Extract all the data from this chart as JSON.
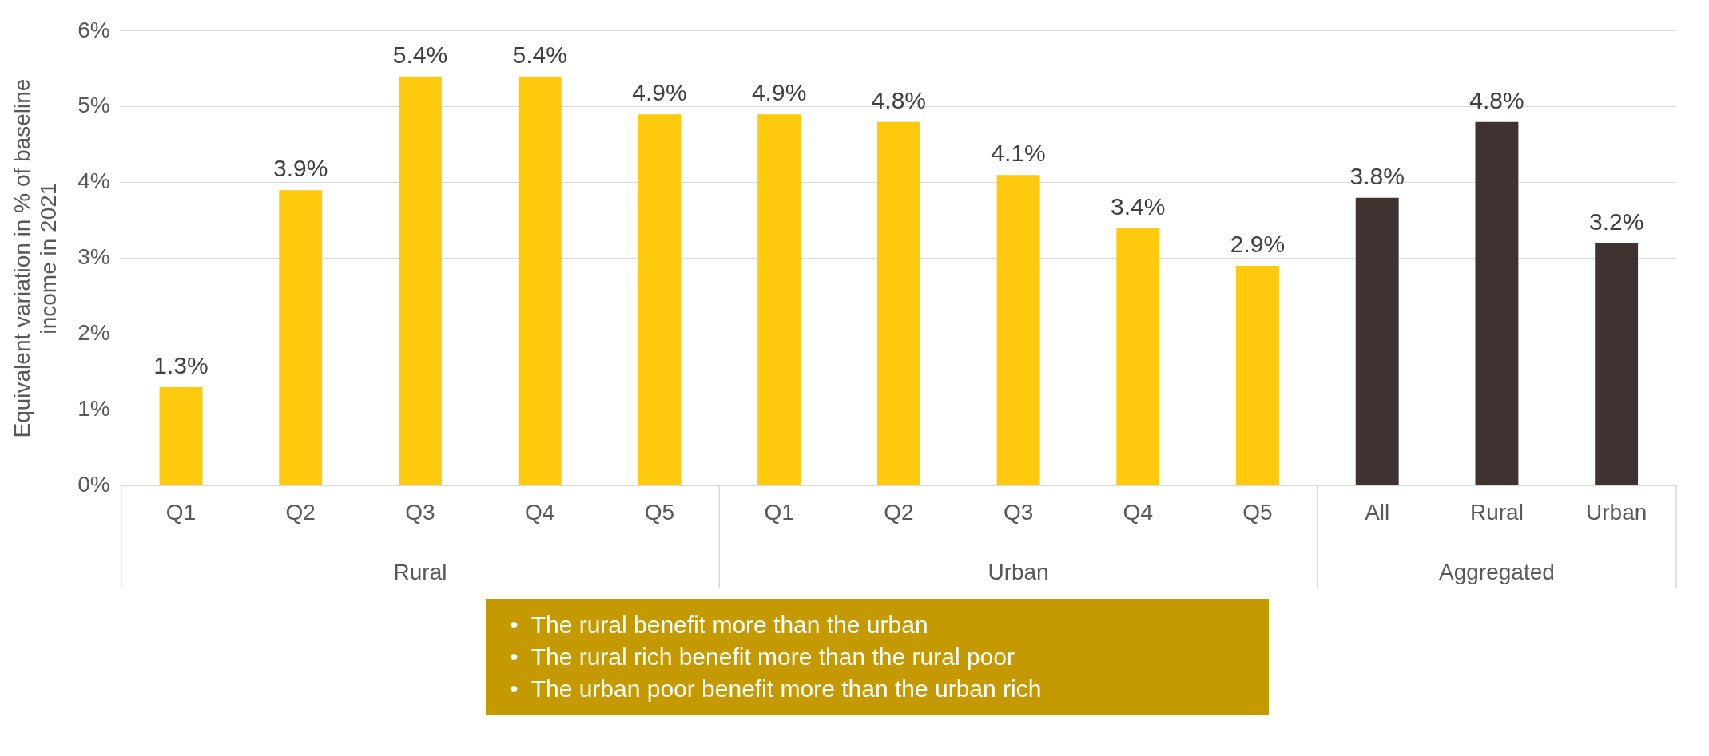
{
  "chart_data": {
    "type": "bar",
    "ylabel": "Equivalent variation in % of baseline income in 2021",
    "categories": [
      "Q1",
      "Q2",
      "Q3",
      "Q4",
      "Q5",
      "Q1",
      "Q2",
      "Q3",
      "Q4",
      "Q5",
      "All",
      "Rural",
      "Urban"
    ],
    "values": [
      1.3,
      3.9,
      5.4,
      5.4,
      4.9,
      4.9,
      4.8,
      4.1,
      3.4,
      2.9,
      3.8,
      4.8,
      3.2
    ],
    "colors": [
      "#ffc90e",
      "#ffc90e",
      "#ffc90e",
      "#ffc90e",
      "#ffc90e",
      "#ffc90e",
      "#ffc90e",
      "#ffc90e",
      "#ffc90e",
      "#ffc90e",
      "#3e3330",
      "#3e3330",
      "#3e3330"
    ],
    "value_labels": [
      "1.3%",
      "3.9%",
      "5.4%",
      "5.4%",
      "4.9%",
      "4.9%",
      "4.8%",
      "4.1%",
      "3.4%",
      "2.9%",
      "3.8%",
      "4.8%",
      "3.2%"
    ],
    "ylim": [
      0,
      6
    ],
    "yticks": [
      {
        "value": 0,
        "label": "0%"
      },
      {
        "value": 1,
        "label": "1%"
      },
      {
        "value": 2,
        "label": "2%"
      },
      {
        "value": 3,
        "label": "3%"
      },
      {
        "value": 4,
        "label": "4%"
      },
      {
        "value": 5,
        "label": "5%"
      },
      {
        "value": 6,
        "label": "6%"
      }
    ],
    "grid": "y",
    "legend": false,
    "annotations": [
      "Rural",
      "Urban",
      "Aggregated",
      "•  The rural benefit more than the urban",
      "•  The rural rich benefit more than the rural poor",
      "•  The urban poor benefit more than the urban rich"
    ]
  }
}
